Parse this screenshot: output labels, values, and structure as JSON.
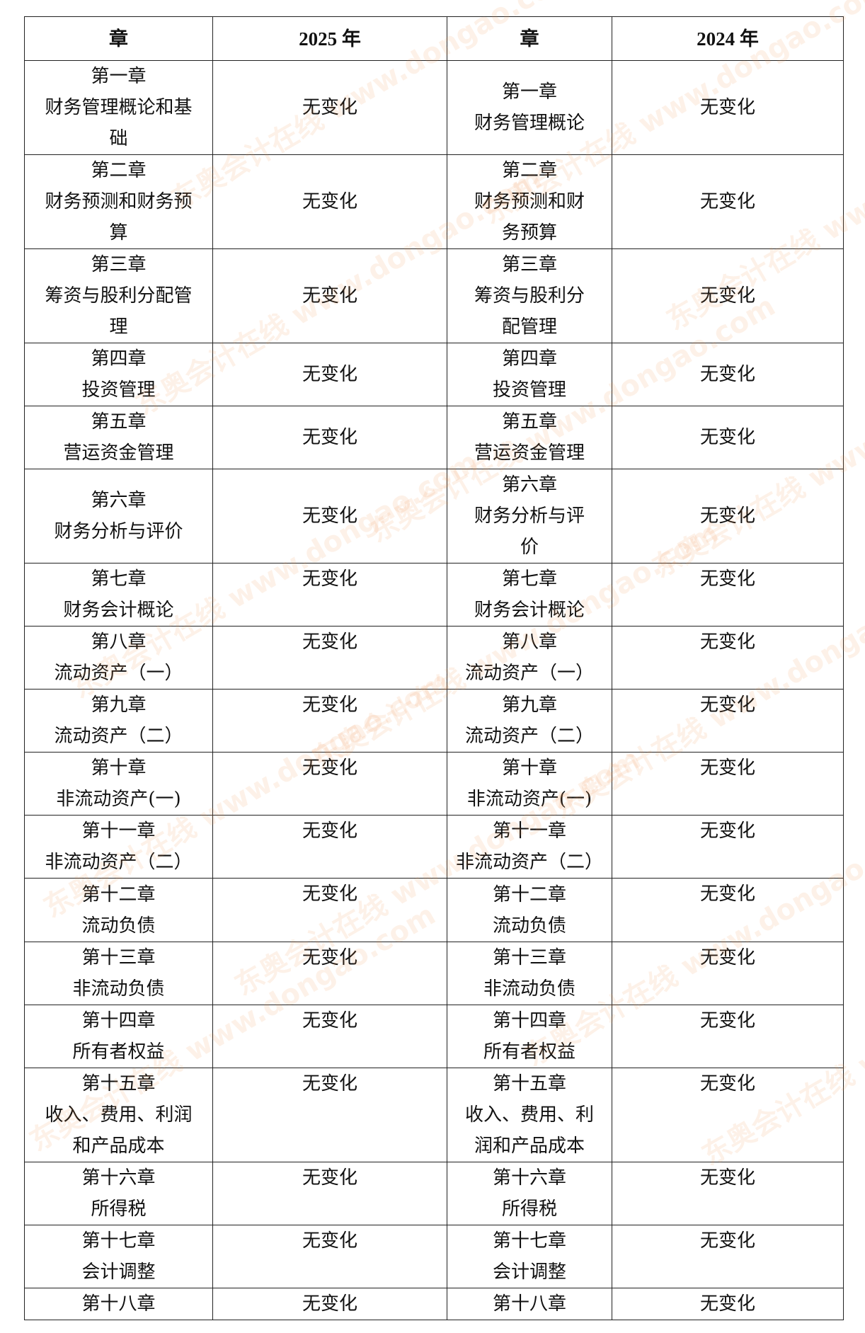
{
  "header": {
    "col1": "章",
    "col2": "2025 年",
    "col3": "章",
    "col4": "2024 年"
  },
  "watermark": "东奥会计在线 www.dongao.com",
  "rows": [
    {
      "c2025": [
        "第一章",
        "财务管理概论和基",
        "础"
      ],
      "v2025": "无变化",
      "c2024": [
        "第一章",
        "财务管理概论"
      ],
      "v2024": "无变化"
    },
    {
      "c2025": [
        "第二章",
        "财务预测和财务预",
        "算"
      ],
      "v2025": "无变化",
      "c2024": [
        "第二章",
        "财务预测和财",
        "务预算"
      ],
      "v2024": "无变化"
    },
    {
      "c2025": [
        "第三章",
        "筹资与股利分配管",
        "理"
      ],
      "v2025": "无变化",
      "c2024": [
        "第三章",
        "筹资与股利分",
        "配管理"
      ],
      "v2024": "无变化"
    },
    {
      "c2025": [
        "第四章",
        "投资管理"
      ],
      "v2025": "无变化",
      "c2024": [
        "第四章",
        "投资管理"
      ],
      "v2024": "无变化"
    },
    {
      "c2025": [
        "第五章",
        "营运资金管理"
      ],
      "v2025": "无变化",
      "c2024": [
        "第五章",
        "营运资金管理"
      ],
      "v2024": "无变化"
    },
    {
      "c2025": [
        "第六章",
        "财务分析与评价"
      ],
      "v2025": "无变化",
      "c2024": [
        "第六章",
        "财务分析与评",
        "价"
      ],
      "v2024": "无变化"
    },
    {
      "c2025": [
        "第七章",
        "财务会计概论"
      ],
      "v2025": "无变化",
      "c2024": [
        "第七章",
        "财务会计概论"
      ],
      "v2024": "无变化"
    },
    {
      "c2025": [
        "第八章",
        "流动资产（一）"
      ],
      "v2025": "无变化",
      "c2024": [
        "第八章",
        "流动资产（一）"
      ],
      "v2024": "无变化"
    },
    {
      "c2025": [
        "第九章",
        "流动资产（二）"
      ],
      "v2025": "无变化",
      "c2024": [
        "第九章",
        "流动资产（二）"
      ],
      "v2024": "无变化"
    },
    {
      "c2025": [
        "第十章",
        "非流动资产(一)"
      ],
      "v2025": "无变化",
      "c2024": [
        "第十章",
        "非流动资产(一)"
      ],
      "v2024": "无变化"
    },
    {
      "c2025": [
        "第十一章",
        "非流动资产（二）"
      ],
      "v2025": "无变化",
      "c2024": [
        "第十一章",
        "非流动资产（二）"
      ],
      "v2024": "无变化"
    },
    {
      "c2025": [
        "第十二章",
        "流动负债"
      ],
      "v2025": "无变化",
      "c2024": [
        "第十二章",
        "流动负债"
      ],
      "v2024": "无变化"
    },
    {
      "c2025": [
        "第十三章",
        "非流动负债"
      ],
      "v2025": "无变化",
      "c2024": [
        "第十三章",
        "非流动负债"
      ],
      "v2024": "无变化"
    },
    {
      "c2025": [
        "第十四章",
        "所有者权益"
      ],
      "v2025": "无变化",
      "c2024": [
        "第十四章",
        "所有者权益"
      ],
      "v2024": "无变化"
    },
    {
      "c2025": [
        "第十五章",
        "收入、费用、利润",
        "和产品成本"
      ],
      "v2025": "无变化",
      "c2024": [
        "第十五章",
        "收入、费用、利",
        "润和产品成本"
      ],
      "v2024": "无变化"
    },
    {
      "c2025": [
        "第十六章",
        "所得税"
      ],
      "v2025": "无变化",
      "c2024": [
        "第十六章",
        "所得税"
      ],
      "v2024": "无变化"
    },
    {
      "c2025": [
        "第十七章",
        "会计调整"
      ],
      "v2025": "无变化",
      "c2024": [
        "第十七章",
        "会计调整"
      ],
      "v2024": "无变化"
    },
    {
      "c2025": [
        "第十八章"
      ],
      "v2025": "无变化",
      "c2024": [
        "第十八章"
      ],
      "v2024": "无变化"
    }
  ]
}
